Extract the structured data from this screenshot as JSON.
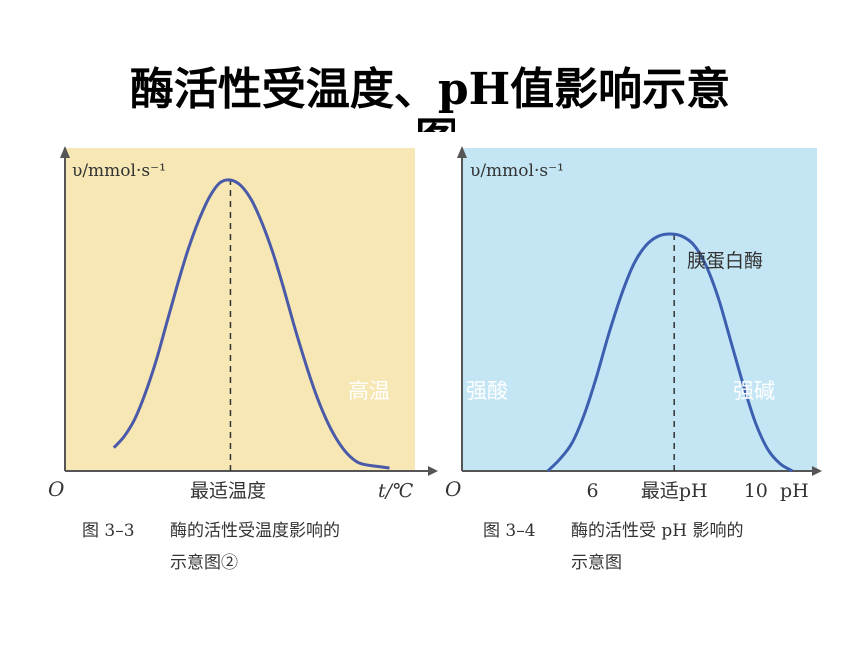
{
  "slide": {
    "title": "酶活性受温度、pH值影响示意",
    "title_overflow": "图"
  },
  "chart_data": [
    {
      "type": "line",
      "id": "temperature",
      "ylabel": "υ/mmol·s⁻¹",
      "origin_label": "O",
      "xlabel": "t/℃",
      "optimum_label": "最适温度",
      "overlay_labels": [
        "高温"
      ],
      "caption_number": "图 3–3",
      "caption_line1": "酶的活性受温度影响的",
      "caption_line2": "示意图②",
      "background": "#f6e7b4",
      "curve_color": "#4a5aa8",
      "x": [
        0,
        0.5,
        1,
        1.5,
        2,
        2.5,
        3,
        3.5,
        4,
        4.5,
        5,
        5.5,
        6,
        6.5,
        7,
        7.5,
        8,
        8.5,
        9,
        9.5,
        10,
        10.5,
        11,
        11.5,
        12,
        12.5,
        13
      ],
      "y": [
        0.08,
        0.12,
        0.18,
        0.27,
        0.38,
        0.51,
        0.64,
        0.76,
        0.86,
        0.94,
        0.99,
        1.0,
        0.98,
        0.93,
        0.85,
        0.75,
        0.63,
        0.5,
        0.38,
        0.27,
        0.18,
        0.11,
        0.06,
        0.03,
        0.02,
        0.015,
        0.01
      ],
      "optimum_x": 5.5
    },
    {
      "type": "line",
      "id": "ph",
      "ylabel": "υ/mmol·s⁻¹",
      "origin_label": "O",
      "xlabel": "pH",
      "x_tick_labels": [
        "6",
        "最适pH",
        "10"
      ],
      "x_tick_values": [
        6,
        8,
        10
      ],
      "series_label": "胰蛋白酶",
      "overlay_labels": [
        "强酸",
        "强碱"
      ],
      "caption_number": "图 3–4",
      "caption_line1": "酶的活性受 pH 影响的",
      "caption_line2": "示意图",
      "background": "#c4e6f4",
      "curve_color": "#3d5fb0",
      "x": [
        4.9,
        5.2,
        5.5,
        5.8,
        6.1,
        6.4,
        6.7,
        7.0,
        7.3,
        7.6,
        7.9,
        8.2,
        8.5,
        8.8,
        9.1,
        9.4,
        9.7,
        10.0,
        10.3,
        10.6,
        10.9
      ],
      "y": [
        0.0,
        0.05,
        0.12,
        0.24,
        0.4,
        0.58,
        0.74,
        0.87,
        0.95,
        0.99,
        1.0,
        0.99,
        0.95,
        0.86,
        0.72,
        0.54,
        0.36,
        0.2,
        0.09,
        0.03,
        0.0
      ],
      "optimum_x": 8.0
    }
  ]
}
